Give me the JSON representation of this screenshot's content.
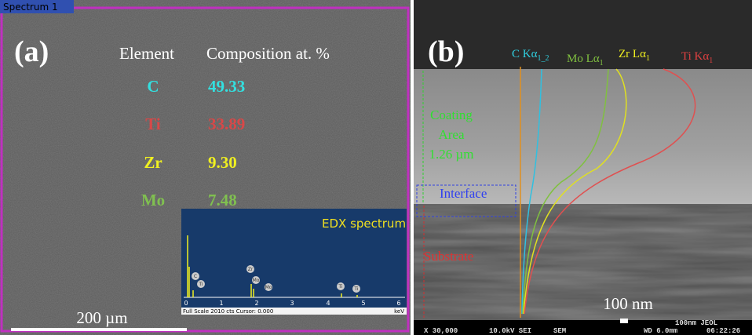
{
  "panel_a": {
    "badge": "Spectrum 1",
    "label": "(a)",
    "header": [
      "Element",
      "Composition at. %"
    ],
    "rows": [
      [
        "C",
        "49.33"
      ],
      [
        "Ti",
        "33.89"
      ],
      [
        "Zr",
        "9.30"
      ],
      [
        "Mo",
        "7.48"
      ]
    ],
    "inset": {
      "title": "EDX spectrum",
      "ticks": [
        "0",
        "1",
        "2",
        "3",
        "4",
        "5",
        "6"
      ],
      "unit": "keV",
      "footer": "Full Scale 2010 cts Cursor: 0.000",
      "peaks": [
        "C",
        "Ti",
        "Zr",
        "Mo",
        "Mo",
        "Ti",
        "Ti"
      ]
    },
    "scale": "200 µm"
  },
  "panel_b": {
    "label": "(b)",
    "traces": [
      {
        "main": "C Kα",
        "sub": "1_2"
      },
      {
        "main": "Mo Lα",
        "sub": "1"
      },
      {
        "main": "Zr Lα",
        "sub": "1"
      },
      {
        "main": "Ti Kα",
        "sub": "1"
      }
    ],
    "coating": [
      "Coating",
      "Area",
      "1.26 µm"
    ],
    "interface": "Interface",
    "substrate": "Substrate",
    "scale": "100 nm",
    "footer": [
      "X 30,000",
      "10.0kV SEI",
      "SEM",
      "WD 6.0mm",
      "06:22:26"
    ],
    "footer_scale": "100nm JEOL"
  }
}
